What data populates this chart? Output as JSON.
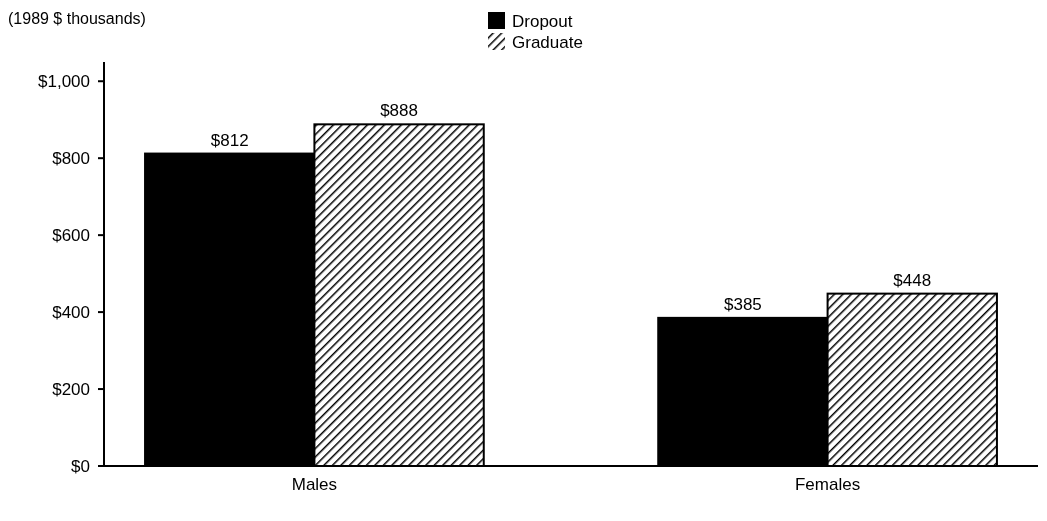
{
  "chart_data": {
    "type": "bar",
    "subtitle": "(1989 $ thousands)",
    "categories": [
      "Males",
      "Females"
    ],
    "series": [
      {
        "name": "Dropout",
        "color": "#000000",
        "values": [
          812,
          385
        ],
        "value_labels": [
          "$812",
          "$385"
        ]
      },
      {
        "name": "Graduate",
        "color": "#000000",
        "values": [
          888,
          448
        ],
        "value_labels": [
          "$888",
          "$448"
        ]
      }
    ],
    "ylim": [
      0,
      1050
    ],
    "yticks": [
      {
        "value": 0,
        "label": "$0"
      },
      {
        "value": 200,
        "label": "$200"
      },
      {
        "value": 400,
        "label": "$400"
      },
      {
        "value": 600,
        "label": "$600"
      },
      {
        "value": 800,
        "label": "$800"
      },
      {
        "value": 1000,
        "label": "$1,000"
      }
    ],
    "legend": "top",
    "grid": false
  }
}
